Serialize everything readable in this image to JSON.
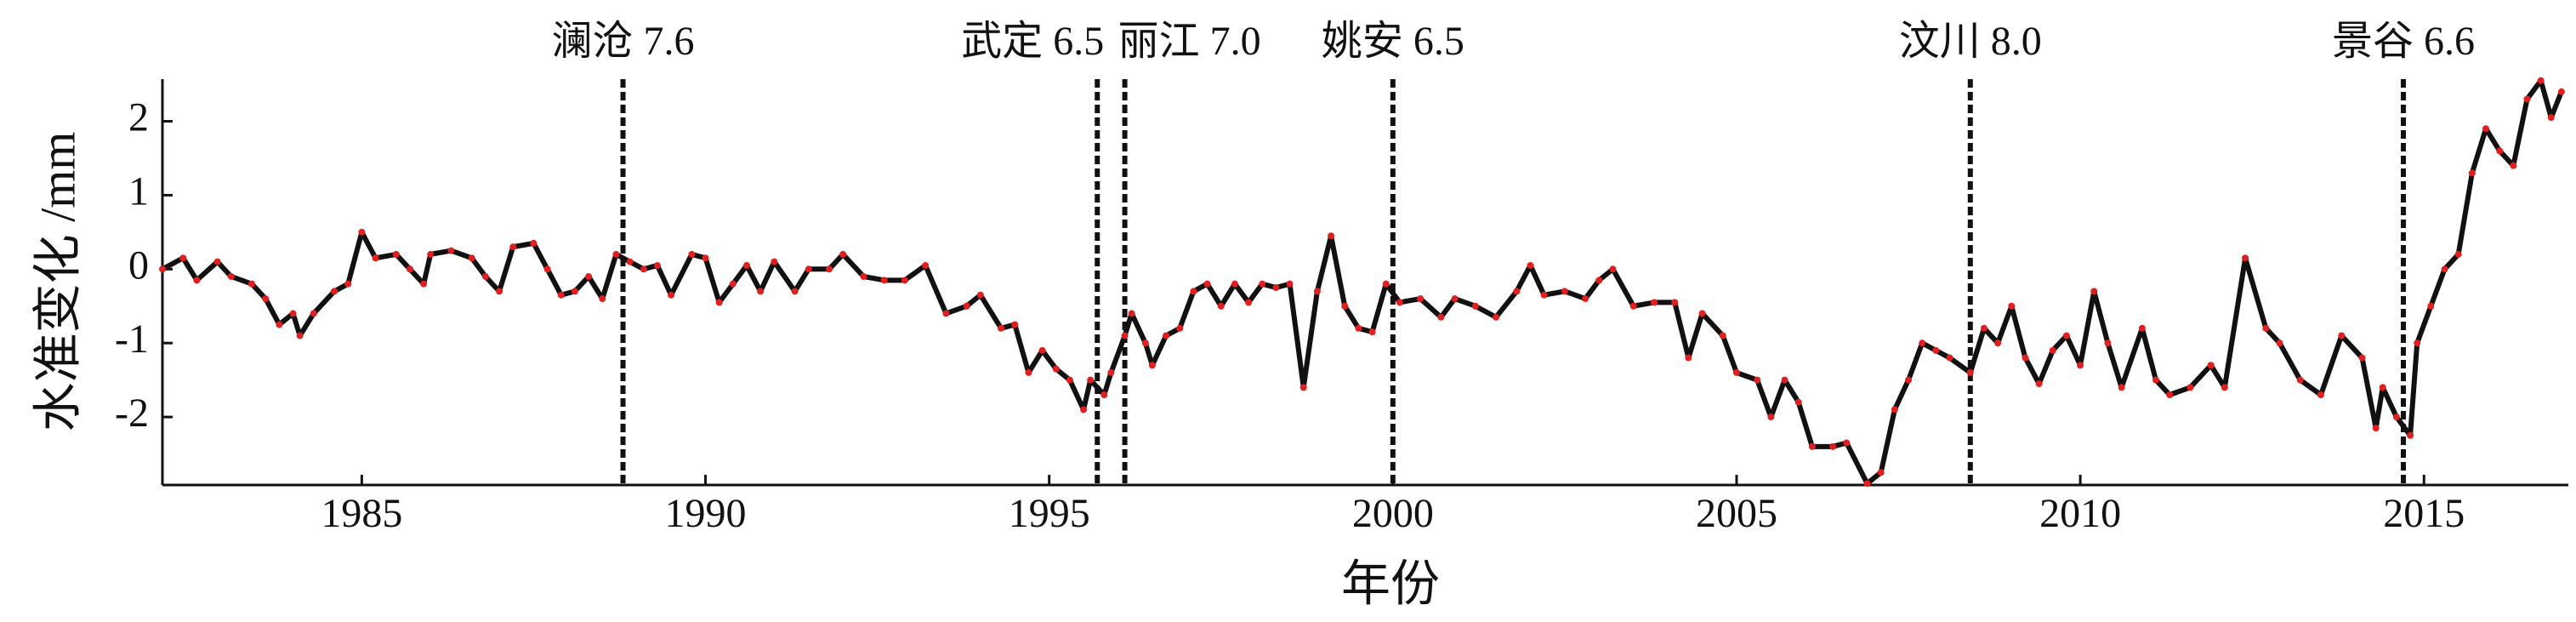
{
  "chart_data": {
    "type": "line",
    "y_label": "水准变化 /mm",
    "x_label": "年份",
    "xlim": [
      1982.1,
      2017.1
    ],
    "ylim": [
      -2.92,
      2.57
    ],
    "xticks": [
      1985,
      1990,
      1995,
      2000,
      2005,
      2010,
      2015
    ],
    "yticks": [
      -2,
      -1,
      0,
      1,
      2
    ],
    "grid": false,
    "events": [
      {
        "label": "澜沧 7.6",
        "x": 1988.8
      },
      {
        "label": "武定 6.5",
        "x": 1995.7
      },
      {
        "label": "丽江 7.0",
        "x": 1996.1
      },
      {
        "label": "姚安 6.5",
        "x": 2000.0
      },
      {
        "label": "汶川 8.0",
        "x": 2008.4
      },
      {
        "label": "景谷 6.6",
        "x": 2014.7
      }
    ],
    "x": [
      1982.1,
      1982.4,
      1982.6,
      1982.9,
      1983.1,
      1983.4,
      1983.6,
      1983.8,
      1984.0,
      1984.1,
      1984.3,
      1984.6,
      1984.8,
      1985.0,
      1985.2,
      1985.5,
      1985.7,
      1985.9,
      1986.0,
      1986.3,
      1986.6,
      1986.8,
      1987.0,
      1987.2,
      1987.5,
      1987.7,
      1987.9,
      1988.1,
      1988.3,
      1988.5,
      1988.7,
      1988.9,
      1989.1,
      1989.3,
      1989.5,
      1989.8,
      1990.0,
      1990.2,
      1990.4,
      1990.6,
      1990.8,
      1991.0,
      1991.3,
      1991.5,
      1991.8,
      1992.0,
      1992.3,
      1992.6,
      1992.9,
      1993.2,
      1993.5,
      1993.8,
      1994.0,
      1994.3,
      1994.5,
      1994.7,
      1994.9,
      1995.1,
      1995.3,
      1995.5,
      1995.6,
      1995.8,
      1995.9,
      1996.1,
      1996.2,
      1996.4,
      1996.5,
      1996.7,
      1996.9,
      1997.1,
      1997.3,
      1997.5,
      1997.7,
      1997.9,
      1998.1,
      1998.3,
      1998.5,
      1998.7,
      1998.9,
      1999.1,
      1999.3,
      1999.5,
      1999.7,
      1999.9,
      2000.1,
      2000.4,
      2000.7,
      2000.9,
      2001.2,
      2001.5,
      2001.8,
      2002.0,
      2002.2,
      2002.5,
      2002.8,
      2003.0,
      2003.2,
      2003.5,
      2003.8,
      2004.1,
      2004.3,
      2004.5,
      2004.8,
      2005.0,
      2005.3,
      2005.5,
      2005.7,
      2005.9,
      2006.1,
      2006.4,
      2006.6,
      2006.9,
      2007.1,
      2007.3,
      2007.5,
      2007.7,
      2007.9,
      2008.1,
      2008.4,
      2008.6,
      2008.8,
      2009.0,
      2009.2,
      2009.4,
      2009.6,
      2009.8,
      2010.0,
      2010.2,
      2010.4,
      2010.6,
      2010.9,
      2011.1,
      2011.3,
      2011.6,
      2011.9,
      2012.1,
      2012.4,
      2012.7,
      2012.9,
      2013.2,
      2013.5,
      2013.8,
      2014.1,
      2014.3,
      2014.4,
      2014.6,
      2014.8,
      2014.9,
      2015.1,
      2015.3,
      2015.5,
      2015.7,
      2015.9,
      2016.1,
      2016.3,
      2016.5,
      2016.7,
      2016.85,
      2017.0
    ],
    "series": [
      {
        "name": "水准变化",
        "color": "#111111",
        "marker_color": "#e02020",
        "values": [
          0.0,
          0.15,
          -0.15,
          0.1,
          -0.1,
          -0.2,
          -0.4,
          -0.75,
          -0.6,
          -0.9,
          -0.6,
          -0.3,
          -0.2,
          0.5,
          0.15,
          0.2,
          0.0,
          -0.2,
          0.2,
          0.25,
          0.15,
          -0.1,
          -0.3,
          0.3,
          0.35,
          0.0,
          -0.35,
          -0.3,
          -0.1,
          -0.4,
          0.2,
          0.1,
          0.0,
          0.05,
          -0.35,
          0.2,
          0.15,
          -0.45,
          -0.2,
          0.05,
          -0.3,
          0.1,
          -0.3,
          0.0,
          0.0,
          0.2,
          -0.1,
          -0.15,
          -0.15,
          0.05,
          -0.6,
          -0.5,
          -0.35,
          -0.8,
          -0.75,
          -1.4,
          -1.1,
          -1.35,
          -1.5,
          -1.9,
          -1.5,
          -1.7,
          -1.4,
          -0.9,
          -0.6,
          -1.0,
          -1.3,
          -0.9,
          -0.8,
          -0.3,
          -0.2,
          -0.5,
          -0.2,
          -0.45,
          -0.2,
          -0.25,
          -0.2,
          -1.6,
          -0.3,
          0.45,
          -0.5,
          -0.8,
          -0.85,
          -0.2,
          -0.45,
          -0.4,
          -0.65,
          -0.4,
          -0.5,
          -0.65,
          -0.3,
          0.05,
          -0.35,
          -0.3,
          -0.4,
          -0.15,
          0.0,
          -0.5,
          -0.45,
          -0.45,
          -1.2,
          -0.6,
          -0.9,
          -1.4,
          -1.5,
          -2.0,
          -1.5,
          -1.8,
          -2.4,
          -2.4,
          -2.35,
          -2.9,
          -2.75,
          -1.9,
          -1.5,
          -1.0,
          -1.1,
          -1.2,
          -1.4,
          -0.8,
          -1.0,
          -0.5,
          -1.2,
          -1.55,
          -1.1,
          -0.9,
          -1.3,
          -0.3,
          -1.0,
          -1.6,
          -0.8,
          -1.5,
          -1.7,
          -1.6,
          -1.3,
          -1.6,
          0.15,
          -0.8,
          -1.0,
          -1.5,
          -1.7,
          -0.9,
          -1.2,
          -2.15,
          -1.6,
          -2.0,
          -2.25,
          -1.0,
          -0.5,
          0.0,
          0.2,
          1.3,
          1.9,
          1.6,
          1.4,
          2.3,
          2.55,
          2.05,
          2.4
        ]
      }
    ]
  }
}
